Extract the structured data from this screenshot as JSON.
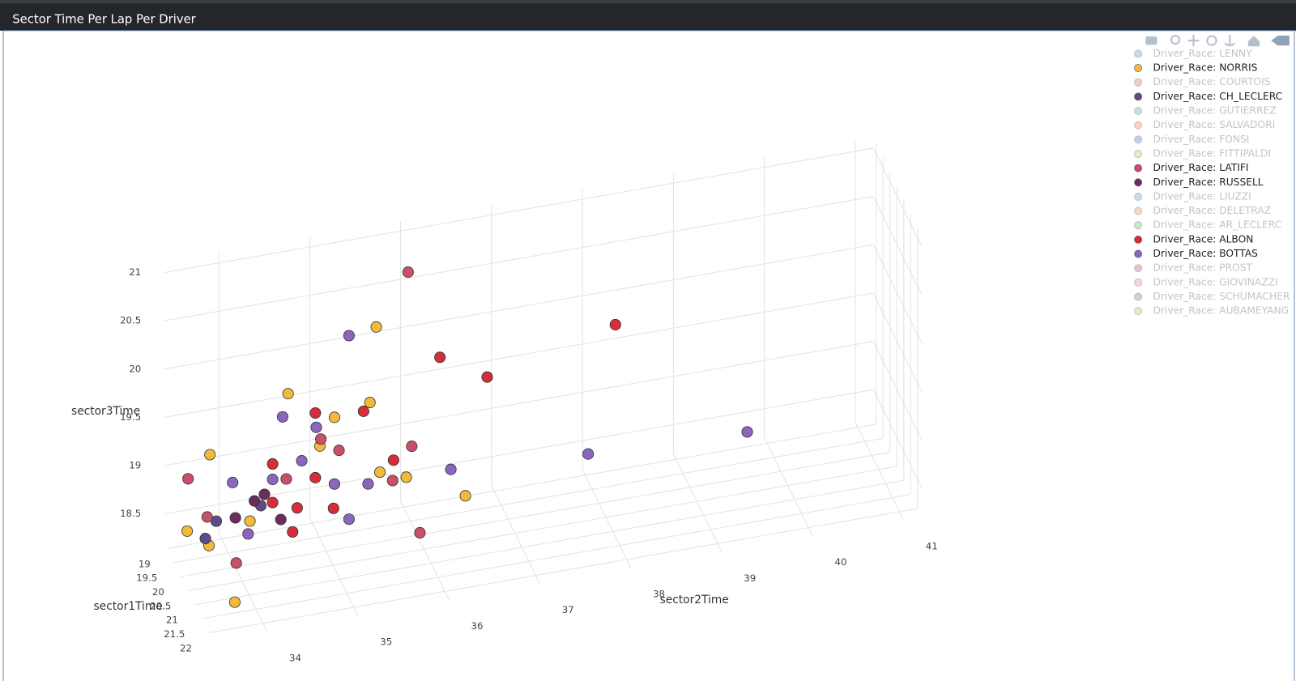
{
  "chart_data": {
    "type": "scatter3d",
    "title": "Sector Time Per Lap Per Driver",
    "xlabel": "sector1Time",
    "ylabel": "sector2Time",
    "zlabel": "sector3Time",
    "xlim": [
      18.8,
      22.3
    ],
    "ylim": [
      33.4,
      41.2
    ],
    "zlim": [
      18.2,
      21.1
    ],
    "xticks": [
      19,
      19.5,
      20,
      20.5,
      21,
      21.5,
      22
    ],
    "yticks": [
      34,
      35,
      36,
      37,
      38,
      39,
      40,
      41
    ],
    "zticks": [
      18.5,
      19,
      19.5,
      20,
      20.5,
      21
    ],
    "grid": true,
    "legend": "top-right",
    "series": [
      {
        "name": "Driver_Race: LENNY",
        "color": "#8fb8d8",
        "visible": false
      },
      {
        "name": "Driver_Race: NORRIS",
        "color": "#f2b93b",
        "visible": true,
        "x": [
          20,
          20,
          20,
          20,
          20,
          20,
          22,
          20,
          20,
          20,
          20,
          20,
          20
        ],
        "y": [
          35.55,
          34.58,
          35.48,
          33.72,
          36.53,
          33.47,
          33.69,
          35.09,
          35.59,
          35.88,
          34.93,
          33.71,
          34.16
        ],
        "z": [
          20.43,
          19.9,
          19.66,
          19.41,
          18.52,
          18.66,
          18.47,
          19.57,
          18.92,
          18.82,
          19.3,
          18.47,
          18.65
        ]
      },
      {
        "name": "Driver_Race: COURTOIS",
        "color": "#e29a9a",
        "visible": false
      },
      {
        "name": "Driver_Race: CH_LECLERC",
        "color": "#5b4c8a",
        "visible": true,
        "x": [
          20,
          20,
          20
        ],
        "y": [
          33.79,
          34.28,
          33.67
        ],
        "z": [
          18.71,
          18.79,
          18.55
        ]
      },
      {
        "name": "Driver_Race: GUTIERREZ",
        "color": "#8ccbb8",
        "visible": false
      },
      {
        "name": "Driver_Race: SALVADORI",
        "color": "#f2a977",
        "visible": false
      },
      {
        "name": "Driver_Race: FONSI",
        "color": "#8ea0cf",
        "visible": false
      },
      {
        "name": "Driver_Race: FITTIPALDI",
        "color": "#c8dc8a",
        "visible": false
      },
      {
        "name": "Driver_Race: LATIFI",
        "color": "#c9506a",
        "visible": true,
        "x": [
          20,
          20,
          20,
          20,
          20,
          20,
          20,
          20,
          20,
          20
        ],
        "y": [
          35.9,
          33.48,
          36.03,
          34.01,
          34.94,
          35.94,
          35.14,
          34.56,
          35.73,
          33.69
        ],
        "z": [
          20.94,
          19.2,
          18.22,
          18.24,
          19.37,
          19.13,
          19.22,
          19.02,
          18.81,
          18.77
        ]
      },
      {
        "name": "Driver_Race: RUSSELL",
        "color": "#6b2d5c",
        "visible": true,
        "x": [
          20,
          20,
          20,
          20
        ],
        "y": [
          34.21,
          34.0,
          34.5,
          34.32
        ],
        "z": [
          18.85,
          18.71,
          18.61,
          18.9
        ]
      },
      {
        "name": "Driver_Race: LIUZZI",
        "color": "#8fb8d8",
        "visible": false
      },
      {
        "name": "Driver_Race: DELETRAZ",
        "color": "#f2b47a",
        "visible": false
      },
      {
        "name": "Driver_Race: AR_LECLERC",
        "color": "#8fd0a0",
        "visible": false
      },
      {
        "name": "Driver_Race: ALBON",
        "color": "#d62d3a",
        "visible": true,
        "x": [
          20,
          20,
          20,
          20,
          20,
          20,
          20,
          20,
          20,
          20,
          20,
          20
        ],
        "y": [
          38.18,
          36.77,
          36.25,
          34.88,
          35.41,
          35.74,
          34.41,
          35.08,
          34.63,
          34.41,
          34.68,
          34.88
        ],
        "z": [
          20.02,
          19.71,
          20.0,
          19.65,
          19.58,
          19.02,
          19.2,
          18.63,
          18.46,
          18.8,
          18.7,
          18.98
        ]
      },
      {
        "name": "Driver_Race: BOTTAS",
        "color": "#8a66c0",
        "visible": true,
        "x": [
          20,
          20,
          20,
          20,
          20,
          20,
          20,
          20,
          20,
          20,
          20,
          20,
          20
        ],
        "y": [
          39.63,
          37.88,
          35.25,
          36.37,
          34.52,
          34.89,
          35.46,
          33.97,
          34.14,
          34.73,
          35.25,
          34.41,
          35.09
        ],
        "z": [
          18.67,
          18.73,
          20.39,
          18.82,
          19.67,
          19.5,
          18.82,
          19.08,
          18.52,
          19.18,
          18.49,
          19.04,
          18.88
        ]
      },
      {
        "name": "Driver_Race: PROST",
        "color": "#d08aa0",
        "visible": false
      },
      {
        "name": "Driver_Race: GIOVINAZZI",
        "color": "#f0a8c8",
        "visible": false
      },
      {
        "name": "Driver_Race: SCHUMACHER",
        "color": "#b0a0b0",
        "visible": false
      },
      {
        "name": "Driver_Race: AUBAMEYANG",
        "color": "#c8e08a",
        "visible": false
      }
    ]
  }
}
